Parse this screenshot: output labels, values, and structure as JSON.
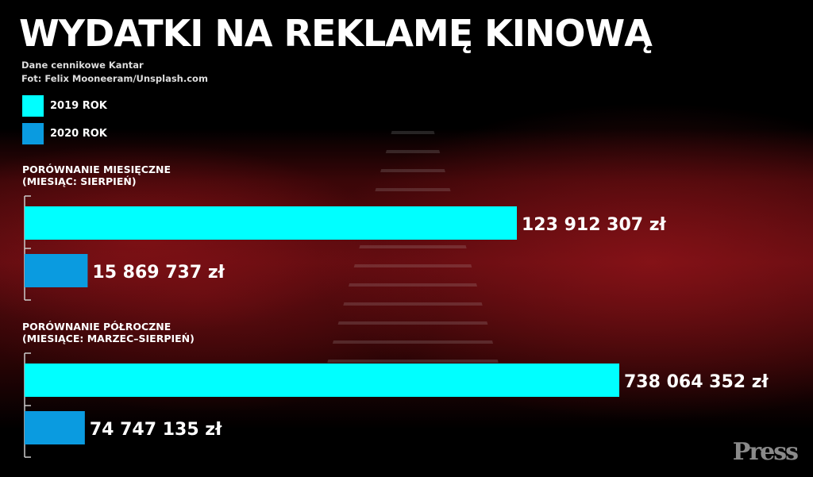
{
  "title": "WYDATKI NA REKLAMĘ KINOWĄ",
  "source": "Dane cennikowe Kantar",
  "photo": "Fot: Felix Mooneeram/Unsplash.com",
  "logo": "PRESS",
  "chart_data": {
    "type": "bar",
    "orientation": "horizontal",
    "legend": {
      "placement": "top-left",
      "entries": [
        {
          "label": "2019 ROK",
          "color": "#00ffff"
        },
        {
          "label": "2020 ROK",
          "color": "#0a9be0"
        }
      ]
    },
    "panels": [
      {
        "title": "PORÓWNANIE MIESIĘCZNE",
        "subtitle": "(MIESIĄC: SIERPIEŃ)",
        "bars": [
          {
            "series": "2019 ROK",
            "value": 123912307,
            "label": "123 912 307 zł",
            "color": "#00ffff"
          },
          {
            "series": "2020 ROK",
            "value": 15869737,
            "label": "15 869 737 zł",
            "color": "#0a9be0"
          }
        ]
      },
      {
        "title": "PORÓWNANIE PÓŁROCZNE",
        "subtitle": "(MIESIĄCE: MARZEC–SIERPIEŃ)",
        "bars": [
          {
            "series": "2019 ROK",
            "value": 738064352,
            "label": "738 064 352 zł",
            "color": "#00ffff"
          },
          {
            "series": "2020 ROK",
            "value": 74747135,
            "label": "74 747 135 zł",
            "color": "#0a9be0"
          }
        ]
      }
    ]
  }
}
